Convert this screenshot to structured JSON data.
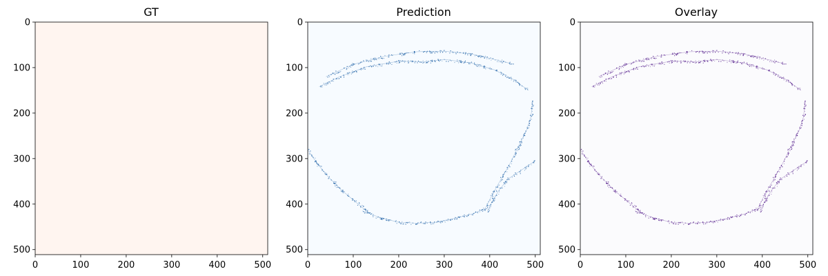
{
  "chart_data": [
    {
      "type": "heatmap",
      "title": "GT",
      "xlabel": "",
      "ylabel": "",
      "xlim": [
        0,
        511
      ],
      "ylim": [
        511,
        0
      ],
      "xticks": [
        0,
        100,
        200,
        300,
        400,
        500
      ],
      "yticks": [
        0,
        100,
        200,
        300,
        400,
        500
      ],
      "background": "#fff5f0",
      "colormap": "Reds",
      "mask": "empty"
    },
    {
      "type": "heatmap",
      "title": "Prediction",
      "xlabel": "",
      "ylabel": "",
      "xlim": [
        0,
        511
      ],
      "ylim": [
        511,
        0
      ],
      "xticks": [
        0,
        100,
        200,
        300,
        400,
        500
      ],
      "yticks": [
        0,
        100,
        200,
        300,
        400,
        500
      ],
      "background": "#f7fbff",
      "colormap": "Blues",
      "mark_color": "#08519c",
      "structures": {
        "top_arc_outer": [
          [
            40,
            120
          ],
          [
            100,
            93
          ],
          [
            170,
            75
          ],
          [
            240,
            65
          ],
          [
            300,
            64
          ],
          [
            360,
            70
          ],
          [
            410,
            82
          ],
          [
            450,
            92
          ]
        ],
        "top_arc_inner": [
          [
            25,
            142
          ],
          [
            70,
            120
          ],
          [
            130,
            98
          ],
          [
            200,
            86
          ],
          [
            260,
            87
          ],
          [
            300,
            82
          ],
          [
            360,
            90
          ],
          [
            410,
            105
          ],
          [
            450,
            125
          ],
          [
            485,
            150
          ]
        ],
        "right_side": [
          [
            495,
            172
          ],
          [
            490,
            210
          ],
          [
            480,
            240
          ],
          [
            462,
            275
          ],
          [
            445,
            310
          ],
          [
            425,
            345
          ],
          [
            405,
            380
          ],
          [
            390,
            410
          ]
        ],
        "left_side": [
          [
            0,
            280
          ],
          [
            20,
            310
          ],
          [
            45,
            340
          ],
          [
            75,
            370
          ],
          [
            105,
            395
          ],
          [
            135,
            420
          ]
        ],
        "bottom_arc": [
          [
            120,
            415
          ],
          [
            160,
            430
          ],
          [
            200,
            440
          ],
          [
            240,
            442
          ],
          [
            280,
            440
          ],
          [
            320,
            432
          ],
          [
            360,
            422
          ],
          [
            390,
            410
          ]
        ],
        "right_inner": [
          [
            500,
            305
          ],
          [
            470,
            325
          ],
          [
            440,
            345
          ],
          [
            420,
            370
          ],
          [
            405,
            395
          ],
          [
            395,
            415
          ]
        ]
      }
    },
    {
      "type": "heatmap",
      "title": "Overlay",
      "xlabel": "",
      "ylabel": "",
      "xlim": [
        0,
        511
      ],
      "ylim": [
        511,
        0
      ],
      "xticks": [
        0,
        100,
        200,
        300,
        400,
        500
      ],
      "yticks": [
        0,
        100,
        200,
        300,
        400,
        500
      ],
      "background": "#fbfbfd",
      "colormap": "Purples",
      "mark_color": "#3f007d",
      "structures_from": "Prediction"
    }
  ]
}
